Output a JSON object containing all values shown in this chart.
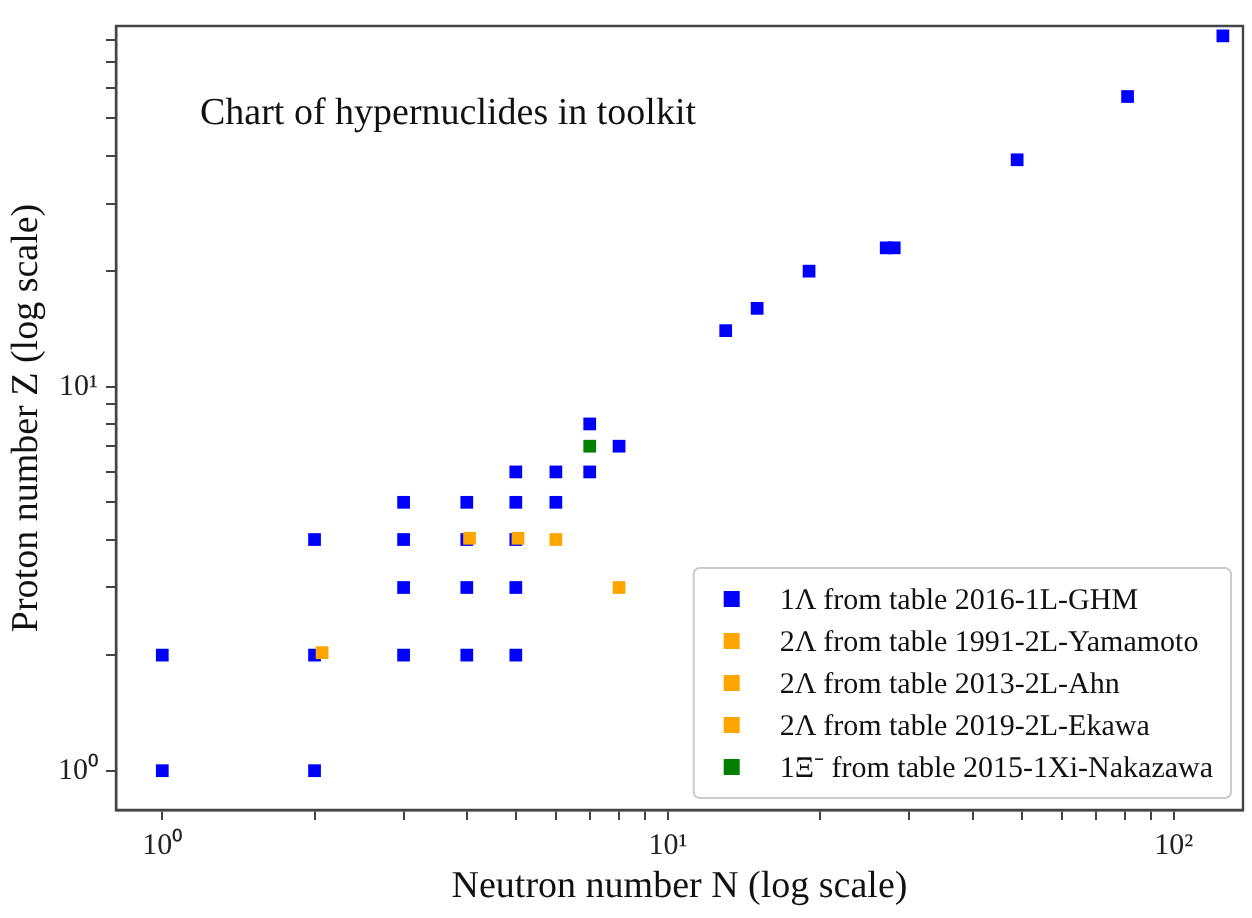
{
  "chart_data": {
    "type": "scatter",
    "title": "Chart of hypernuclides in toolkit",
    "xlabel": "Neutron number N (log scale)",
    "ylabel": "Proton number Z (log scale)",
    "log": "xy",
    "xlim": [
      0.81,
      137
    ],
    "ylim": [
      0.79,
      87
    ],
    "xticks": [
      {
        "value": 1,
        "label": "10⁰"
      },
      {
        "value": 2,
        "label": null
      },
      {
        "value": 3,
        "label": null
      },
      {
        "value": 4,
        "label": null
      },
      {
        "value": 5,
        "label": null
      },
      {
        "value": 6,
        "label": null
      },
      {
        "value": 7,
        "label": null
      },
      {
        "value": 8,
        "label": null
      },
      {
        "value": 9,
        "label": null
      },
      {
        "value": 10,
        "label": "10¹"
      },
      {
        "value": 20,
        "label": null
      },
      {
        "value": 30,
        "label": null
      },
      {
        "value": 40,
        "label": null
      },
      {
        "value": 50,
        "label": null
      },
      {
        "value": 60,
        "label": null
      },
      {
        "value": 70,
        "label": null
      },
      {
        "value": 80,
        "label": null
      },
      {
        "value": 90,
        "label": null
      },
      {
        "value": 100,
        "label": "10²"
      }
    ],
    "yticks": [
      {
        "value": 1,
        "label": "10⁰"
      },
      {
        "value": 2,
        "label": null
      },
      {
        "value": 3,
        "label": null
      },
      {
        "value": 4,
        "label": null
      },
      {
        "value": 5,
        "label": null
      },
      {
        "value": 6,
        "label": null
      },
      {
        "value": 7,
        "label": null
      },
      {
        "value": 8,
        "label": null
      },
      {
        "value": 9,
        "label": null
      },
      {
        "value": 10,
        "label": "10¹"
      },
      {
        "value": 20,
        "label": null
      },
      {
        "value": 30,
        "label": null
      },
      {
        "value": 40,
        "label": null
      },
      {
        "value": 50,
        "label": null
      },
      {
        "value": 60,
        "label": null
      },
      {
        "value": 70,
        "label": null
      },
      {
        "value": 80,
        "label": null
      }
    ],
    "grid": false,
    "legend": "bottom right",
    "marker": "square",
    "series": [
      {
        "name": "1Λ from table 2016-1L-GHM",
        "color": "#0000ff",
        "x": [
          1,
          1,
          2,
          2,
          2,
          3,
          3,
          3,
          3,
          4,
          4,
          4,
          4,
          5,
          5,
          5,
          5,
          5,
          6,
          6,
          7,
          7,
          8,
          13,
          15,
          19,
          27,
          28,
          49,
          81,
          125
        ],
        "values": [
          1,
          2,
          1,
          2,
          4,
          2,
          3,
          4,
          5,
          2,
          3,
          4,
          5,
          2,
          3,
          4,
          5,
          6,
          5,
          6,
          6,
          8,
          7,
          14,
          16,
          20,
          23,
          23,
          39,
          57,
          82
        ]
      },
      {
        "name": "2Λ from table 1991-2L-Yamamoto",
        "color": "#ffa500",
        "x": [
          2.07,
          4.05
        ],
        "values": [
          2.03,
          4.03
        ]
      },
      {
        "name": "2Λ from table 2013-2L-Ahn",
        "color": "#ffa500",
        "x": [
          5.05,
          6
        ],
        "values": [
          4.03,
          4
        ]
      },
      {
        "name": "2Λ from table 2019-2L-Ekawa",
        "color": "#ffa500",
        "x": [
          8
        ],
        "values": [
          3
        ]
      },
      {
        "name": "1Ξ⁻ from table 2015-1Xi-Nakazawa",
        "color": "#008000",
        "x": [
          7
        ],
        "values": [
          7
        ]
      }
    ]
  }
}
